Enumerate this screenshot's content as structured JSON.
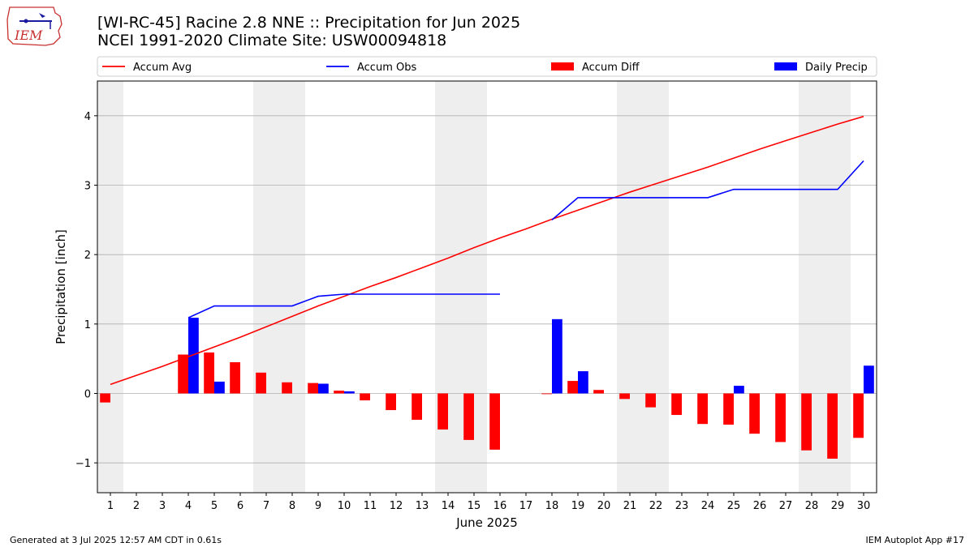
{
  "header": {
    "title": "[WI-RC-45] Racine 2.8 NNE :: Precipitation for Jun 2025",
    "subtitle": "NCEI 1991-2020 Climate Site: USW00094818",
    "logo_text": "IEM"
  },
  "footer": {
    "left": "Generated at 3 Jul 2025 12:57 AM CDT in 0.61s",
    "right": "IEM Autoplot App #17"
  },
  "colors": {
    "accum_avg": "#ff0000",
    "accum_obs": "#0000ff",
    "accum_diff": "#ff0000",
    "daily_precip": "#0000ff",
    "weekend_shade": "#eeeeee",
    "grid": "#b0b0b0"
  },
  "chart_data": {
    "type": "bar",
    "xlabel": "June 2025",
    "ylabel": "Precipitation [inch]",
    "ylim": [
      -1.43,
      4.5
    ],
    "yticks": [
      -1,
      0,
      1,
      2,
      3,
      4
    ],
    "ytick_labels": [
      "−1",
      "0",
      "1",
      "2",
      "3",
      "4"
    ],
    "grid": "horizontal",
    "legend_position": "top",
    "legend": [
      "Accum Avg",
      "Accum Obs",
      "Accum Diff",
      "Daily Precip"
    ],
    "days": [
      1,
      2,
      3,
      4,
      5,
      6,
      7,
      8,
      9,
      10,
      11,
      12,
      13,
      14,
      15,
      16,
      17,
      18,
      19,
      20,
      21,
      22,
      23,
      24,
      25,
      26,
      27,
      28,
      29,
      30
    ],
    "weekend_days": [
      1,
      7,
      8,
      14,
      15,
      21,
      22,
      28,
      29
    ],
    "series": [
      {
        "name": "Accum Avg",
        "type": "line",
        "days": [
          1,
          2,
          3,
          4,
          5,
          6,
          7,
          8,
          9,
          10,
          11,
          12,
          13,
          14,
          15,
          16,
          17,
          18,
          19,
          20,
          21,
          22,
          23,
          24,
          25,
          26,
          27,
          28,
          29,
          30
        ],
        "values": [
          0.13,
          0.26,
          0.39,
          0.53,
          0.67,
          0.81,
          0.96,
          1.11,
          1.26,
          1.4,
          1.54,
          1.67,
          1.81,
          1.95,
          2.1,
          2.24,
          2.37,
          2.51,
          2.64,
          2.77,
          2.9,
          3.02,
          3.14,
          3.26,
          3.39,
          3.52,
          3.64,
          3.76,
          3.88,
          3.99
        ]
      },
      {
        "name": "Accum Obs",
        "type": "line",
        "segments": [
          {
            "days": [
              4,
              5,
              6,
              7,
              8,
              9,
              10,
              11,
              12,
              13,
              14,
              15,
              16
            ],
            "values": [
              1.09,
              1.26,
              1.26,
              1.26,
              1.26,
              1.4,
              1.43,
              1.43,
              1.43,
              1.43,
              1.43,
              1.43,
              1.43
            ]
          },
          {
            "days": [
              18,
              19,
              20,
              21,
              22,
              23,
              24,
              25,
              26,
              27,
              28,
              29,
              30
            ],
            "values": [
              2.5,
              2.82,
              2.82,
              2.82,
              2.82,
              2.82,
              2.82,
              2.94,
              2.94,
              2.94,
              2.94,
              2.94,
              3.35
            ]
          }
        ]
      },
      {
        "name": "Accum Diff",
        "type": "bar",
        "days": [
          1,
          4,
          5,
          6,
          7,
          8,
          9,
          10,
          11,
          12,
          13,
          14,
          15,
          16,
          18,
          19,
          20,
          21,
          22,
          23,
          24,
          25,
          26,
          27,
          28,
          29,
          30
        ],
        "values": [
          -0.13,
          0.56,
          0.59,
          0.45,
          0.3,
          0.16,
          0.15,
          0.04,
          -0.1,
          -0.24,
          -0.38,
          -0.52,
          -0.67,
          -0.81,
          -0.01,
          0.18,
          0.05,
          -0.08,
          -0.2,
          -0.31,
          -0.44,
          -0.45,
          -0.58,
          -0.7,
          -0.82,
          -0.94,
          -0.64
        ]
      },
      {
        "name": "Daily Precip",
        "type": "bar",
        "days": [
          4,
          5,
          9,
          10,
          18,
          19,
          25,
          30
        ],
        "values": [
          1.09,
          0.17,
          0.14,
          0.03,
          1.07,
          0.32,
          0.11,
          0.4
        ]
      }
    ]
  }
}
